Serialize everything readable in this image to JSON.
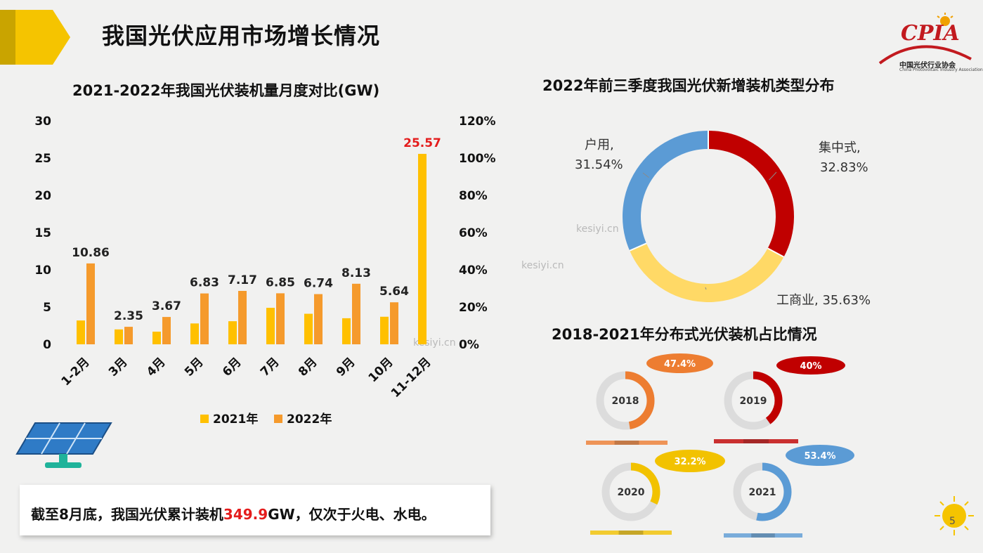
{
  "page": {
    "title": "我国光伏应用市场增长情况",
    "logo_text": "CPIA",
    "logo_sub_cn": "中国光伏行业协会",
    "logo_sub_en": "China Photovoltaic Industry Association",
    "page_number": "5",
    "watermark": "kesiyi.cn",
    "note_prefix": "截至8月底，我国光伏累计装机",
    "note_highlight": "349.9",
    "note_suffix": "GW，仅次于火电、水电。",
    "accent_color": "#f5c400"
  },
  "chart_data": [
    {
      "type": "bar",
      "title": "2021-2022年我国光伏装机量月度对比(GW)",
      "categories": [
        "1-2月",
        "3月",
        "4月",
        "5月",
        "6月",
        "7月",
        "8月",
        "9月",
        "10月",
        "11-12月"
      ],
      "series": [
        {
          "name": "2021年",
          "color": "#ffc000",
          "values": [
            3.2,
            2.0,
            1.7,
            2.8,
            3.1,
            4.9,
            4.1,
            3.5,
            3.7,
            25.57
          ],
          "data_labels": [
            "",
            "",
            "",
            "",
            "",
            "",
            "",
            "",
            "",
            "25.57"
          ]
        },
        {
          "name": "2022年",
          "color": "#f59a2c",
          "values": [
            10.86,
            2.35,
            3.67,
            6.83,
            7.17,
            6.85,
            6.74,
            8.13,
            5.64,
            null
          ],
          "data_labels": [
            "10.86",
            "2.35",
            "3.67",
            "6.83",
            "7.17",
            "6.85",
            "6.74",
            "8.13",
            "5.64",
            ""
          ]
        }
      ],
      "ylim": [
        0,
        30
      ],
      "y_ticks": [
        "0",
        "5",
        "10",
        "15",
        "20",
        "25",
        "30"
      ],
      "y2lim": [
        0,
        1.2
      ],
      "y2_ticks": [
        "0%",
        "20%",
        "40%",
        "60%",
        "80%",
        "100%",
        "120%"
      ],
      "legend_position": "bottom"
    },
    {
      "type": "pie",
      "title": "2022年前三季度我国光伏新增装机类型分布",
      "slices": [
        {
          "label": "集中式",
          "value_label": "32.83%",
          "value": 32.83,
          "color": "#c00000"
        },
        {
          "label": "工商业",
          "value_label": "35.63%",
          "value": 35.63,
          "color": "#ffd966"
        },
        {
          "label": "户用",
          "value_label": "31.54%",
          "value": 31.54,
          "color": "#5b9bd5"
        }
      ]
    },
    {
      "type": "pie",
      "title": "2018-2021年分布式光伏装机占比情况",
      "items": [
        {
          "year": "2018",
          "value_label": "47.4%",
          "value": 47.4,
          "color": "#ed7d31"
        },
        {
          "year": "2019",
          "value_label": "40%",
          "value": 40.0,
          "color": "#c00000"
        },
        {
          "year": "2020",
          "value_label": "32.2%",
          "value": 32.2,
          "color": "#f2c200"
        },
        {
          "year": "2021",
          "value_label": "53.4%",
          "value": 53.4,
          "color": "#5b9bd5"
        }
      ]
    }
  ]
}
